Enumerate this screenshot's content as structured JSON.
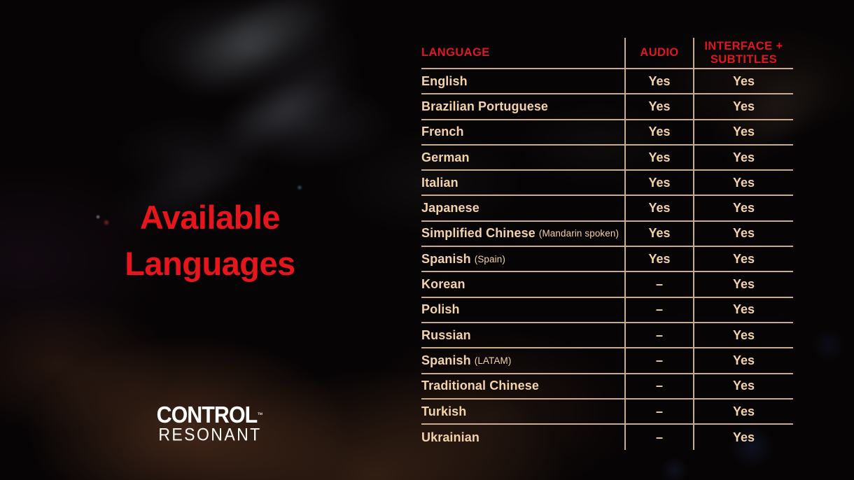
{
  "page": {
    "title_line1": "Available",
    "title_line2": "Languages"
  },
  "logo": {
    "brand": "CONTROL",
    "trademark": "™",
    "edition": "RESONANT"
  },
  "table": {
    "header": {
      "language": "LANGUAGE",
      "audio": "AUDIO",
      "interface_subtitles": "INTERFACE + SUBTITLES"
    },
    "rows": [
      {
        "language": "English",
        "note": "",
        "audio": "Yes",
        "interface_subtitles": "Yes"
      },
      {
        "language": "Brazilian Portuguese",
        "note": "",
        "audio": "Yes",
        "interface_subtitles": "Yes"
      },
      {
        "language": "French",
        "note": "",
        "audio": "Yes",
        "interface_subtitles": "Yes"
      },
      {
        "language": "German",
        "note": "",
        "audio": "Yes",
        "interface_subtitles": "Yes"
      },
      {
        "language": "Italian",
        "note": "",
        "audio": "Yes",
        "interface_subtitles": "Yes"
      },
      {
        "language": "Japanese",
        "note": "",
        "audio": "Yes",
        "interface_subtitles": "Yes"
      },
      {
        "language": "Simplified Chinese",
        "note": "(Mandarin spoken)",
        "audio": "Yes",
        "interface_subtitles": "Yes"
      },
      {
        "language": "Spanish",
        "note": "(Spain)",
        "audio": "Yes",
        "interface_subtitles": "Yes"
      },
      {
        "language": "Korean",
        "note": "",
        "audio": "–",
        "interface_subtitles": "Yes"
      },
      {
        "language": "Polish",
        "note": "",
        "audio": "–",
        "interface_subtitles": "Yes"
      },
      {
        "language": "Russian",
        "note": "",
        "audio": "–",
        "interface_subtitles": "Yes"
      },
      {
        "language": "Spanish",
        "note": "(LATAM)",
        "audio": "–",
        "interface_subtitles": "Yes"
      },
      {
        "language": "Traditional Chinese",
        "note": "",
        "audio": "–",
        "interface_subtitles": "Yes"
      },
      {
        "language": "Turkish",
        "note": "",
        "audio": "–",
        "interface_subtitles": "Yes"
      },
      {
        "language": "Ukrainian",
        "note": "",
        "audio": "–",
        "interface_subtitles": "Yes"
      }
    ]
  },
  "colors": {
    "accent_red_title": "#e8151d",
    "accent_red_header": "#dd1820",
    "table_text": "#f3d3a7",
    "table_line": "#c9ab8d",
    "background": "#070405",
    "logo_white": "#ffffff"
  }
}
